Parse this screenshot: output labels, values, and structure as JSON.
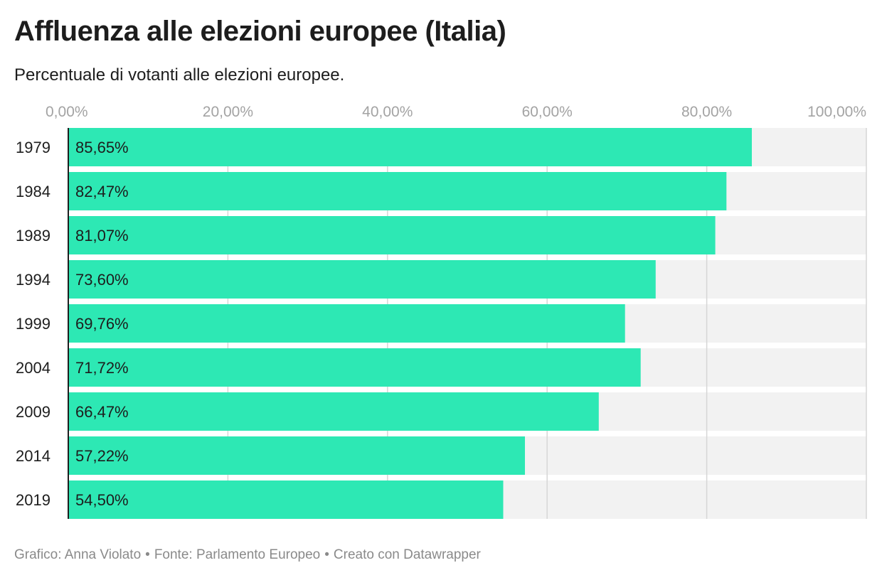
{
  "header": {
    "title": "Affluenza alle elezioni europee (Italia)",
    "subtitle": "Percentuale di votanti alle elezioni europee."
  },
  "footer": {
    "chart_by": "Grafico: Anna Violato",
    "source": "Fonte: Parlamento Europeo",
    "created_with": "Creato con Datawrapper",
    "separator": "•"
  },
  "colors": {
    "bar": "#2de8b4",
    "track": "#f2f2f2",
    "grid": "#d6d6d6",
    "axis": "#1d1d1d",
    "tick_text": "#a3a3a3",
    "text": "#1d1d1d"
  },
  "chart_data": {
    "type": "bar",
    "orientation": "horizontal",
    "title": "Affluenza alle elezioni europee (Italia)",
    "subtitle": "Percentuale di votanti alle elezioni europee.",
    "categories": [
      "1979",
      "1984",
      "1989",
      "1994",
      "1999",
      "2004",
      "2009",
      "2014",
      "2019"
    ],
    "values": [
      85.65,
      82.47,
      81.07,
      73.6,
      69.76,
      71.72,
      66.47,
      57.22,
      54.5
    ],
    "value_labels": [
      "85,65%",
      "82,47%",
      "81,07%",
      "73,60%",
      "69,76%",
      "71,72%",
      "66,47%",
      "57,22%",
      "54,50%"
    ],
    "xlim": [
      0,
      100
    ],
    "xticks": [
      0,
      20,
      40,
      60,
      80,
      100
    ],
    "xtick_labels": [
      "0,00%",
      "20,00%",
      "40,00%",
      "60,00%",
      "80,00%",
      "100,00%"
    ],
    "axis_position": "top",
    "grid": true
  }
}
